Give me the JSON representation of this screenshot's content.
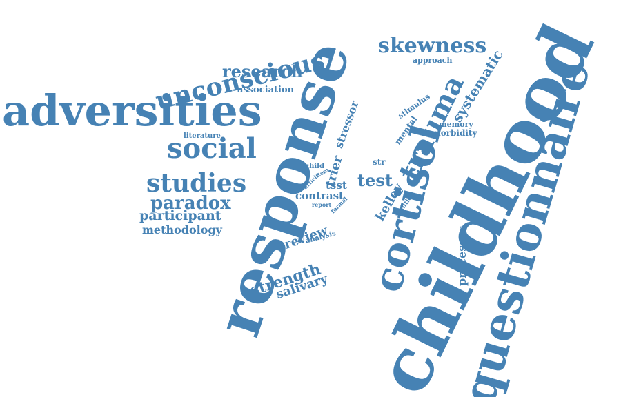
{
  "color": "#4682b4",
  "words": {
    "childhood": "childhood",
    "response": "response",
    "questionnaire": "questionnaire",
    "adversities": "adversities",
    "cortisol": "cortisol",
    "trauma": "trauma",
    "social": "social",
    "unconscious": "unconscious",
    "studies": "studies",
    "skewness": "skewness",
    "research": "research",
    "paradox": "paradox",
    "participant": "participant",
    "methodology": "methodology",
    "strength": "strength",
    "salivary": "salivary",
    "review": "review",
    "test": "test",
    "systematic": "systematic",
    "kelley": "kelley",
    "trier": "trier",
    "stressor": "stressor",
    "processes": "processes",
    "contrast": "contrast",
    "tsst": "tsst",
    "association": "association",
    "approach": "approach",
    "memory": "memory",
    "morbidity": "morbidity",
    "mental": "mental",
    "stimulus": "stimulus",
    "literature": "literature",
    "str": "str",
    "child": "child",
    "article": "article",
    "item": "item",
    "report": "report",
    "formal": "formal",
    "addition": "addition",
    "analysis": "analysis"
  }
}
